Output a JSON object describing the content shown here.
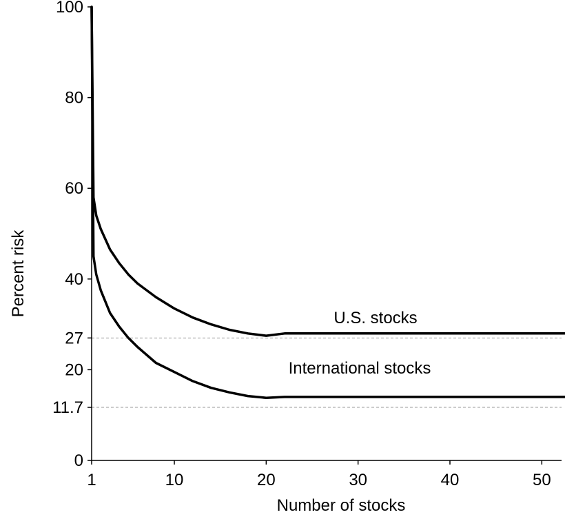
{
  "chart_data": {
    "type": "line",
    "title": "",
    "xlabel": "Number of stocks",
    "ylabel": "Percent risk",
    "xlim": [
      1,
      58
    ],
    "ylim": [
      0,
      100
    ],
    "x_ticks": [
      1,
      10,
      20,
      30,
      40,
      50
    ],
    "y_ticks": [
      0,
      11.7,
      20,
      27,
      40,
      60,
      80,
      100
    ],
    "grid": false,
    "reference_lines": [
      {
        "y": 27,
        "style": "dashed",
        "color": "#999999"
      },
      {
        "y": 11.7,
        "style": "dashed",
        "color": "#999999"
      }
    ],
    "series": [
      {
        "x": [
          1,
          1.2,
          1.5,
          2,
          3,
          4,
          5,
          6,
          8,
          10,
          12,
          14,
          16,
          18,
          20,
          22,
          25,
          30,
          40,
          50,
          53
        ],
        "y": [
          100,
          58,
          54,
          51,
          46.5,
          43.5,
          41,
          39,
          36,
          33.5,
          31.5,
          30,
          28.8,
          28,
          27.5,
          28,
          28,
          28,
          28,
          28,
          28
        ]
      },
      {
        "x": [
          1,
          1.2,
          1.5,
          2,
          3,
          4,
          5,
          6,
          8,
          10,
          12,
          14,
          16,
          18,
          20,
          22,
          25,
          30,
          40,
          50,
          53
        ],
        "y": [
          100,
          45,
          41,
          37.5,
          32.5,
          29.5,
          27,
          25,
          21.5,
          19.5,
          17.5,
          16,
          15,
          14.2,
          13.8,
          14,
          14,
          14,
          14,
          14,
          14
        ]
      }
    ],
    "annotations": [
      "U.S. stocks",
      "International stocks"
    ],
    "colors": {
      "line": "#000000",
      "reference": "#999999",
      "axis": "#000000"
    }
  }
}
